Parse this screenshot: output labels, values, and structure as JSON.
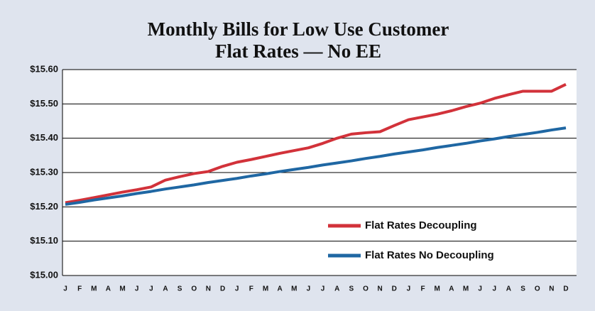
{
  "chart_data": {
    "type": "line",
    "title": "Monthly Bills for Low Use Customer",
    "subtitle": "Flat Rates — No EE",
    "categories": [
      "J",
      "F",
      "M",
      "A",
      "M",
      "J",
      "J",
      "A",
      "S",
      "O",
      "N",
      "D",
      "J",
      "F",
      "M",
      "A",
      "M",
      "J",
      "J",
      "A",
      "S",
      "O",
      "N",
      "D",
      "J",
      "F",
      "M",
      "A",
      "M",
      "J",
      "J",
      "A",
      "S",
      "O",
      "N",
      "D"
    ],
    "series": [
      {
        "name": "Flat Rates Decoupling",
        "color": "#d2323a",
        "values": [
          15.212,
          15.219,
          15.227,
          15.235,
          15.243,
          15.25,
          15.258,
          15.278,
          15.288,
          15.297,
          15.303,
          15.318,
          15.33,
          15.338,
          15.347,
          15.356,
          15.364,
          15.372,
          15.385,
          15.4,
          15.412,
          15.416,
          15.419,
          15.437,
          15.454,
          15.462,
          15.47,
          15.48,
          15.492,
          15.502,
          15.516,
          15.527,
          15.537,
          15.537,
          15.537,
          15.557
        ]
      },
      {
        "name": "Flat Rates No Decoupling",
        "color": "#1f67a3",
        "values": [
          15.207,
          15.213,
          15.22,
          15.226,
          15.232,
          15.239,
          15.245,
          15.252,
          15.258,
          15.264,
          15.271,
          15.277,
          15.283,
          15.29,
          15.296,
          15.303,
          15.309,
          15.315,
          15.322,
          15.328,
          15.334,
          15.341,
          15.347,
          15.354,
          15.36,
          15.366,
          15.373,
          15.379,
          15.385,
          15.392,
          15.398,
          15.405,
          15.411,
          15.417,
          15.424,
          15.43
        ]
      }
    ],
    "ylim": [
      15.0,
      15.6
    ],
    "yticks": [
      {
        "value": 15.0,
        "label": "$15.00"
      },
      {
        "value": 15.1,
        "label": "$15.10"
      },
      {
        "value": 15.2,
        "label": "$15.20"
      },
      {
        "value": 15.3,
        "label": "$15.30"
      },
      {
        "value": 15.4,
        "label": "$15.40"
      },
      {
        "value": 15.5,
        "label": "$15.50"
      },
      {
        "value": 15.6,
        "label": "$15.60"
      }
    ],
    "grid": true
  }
}
